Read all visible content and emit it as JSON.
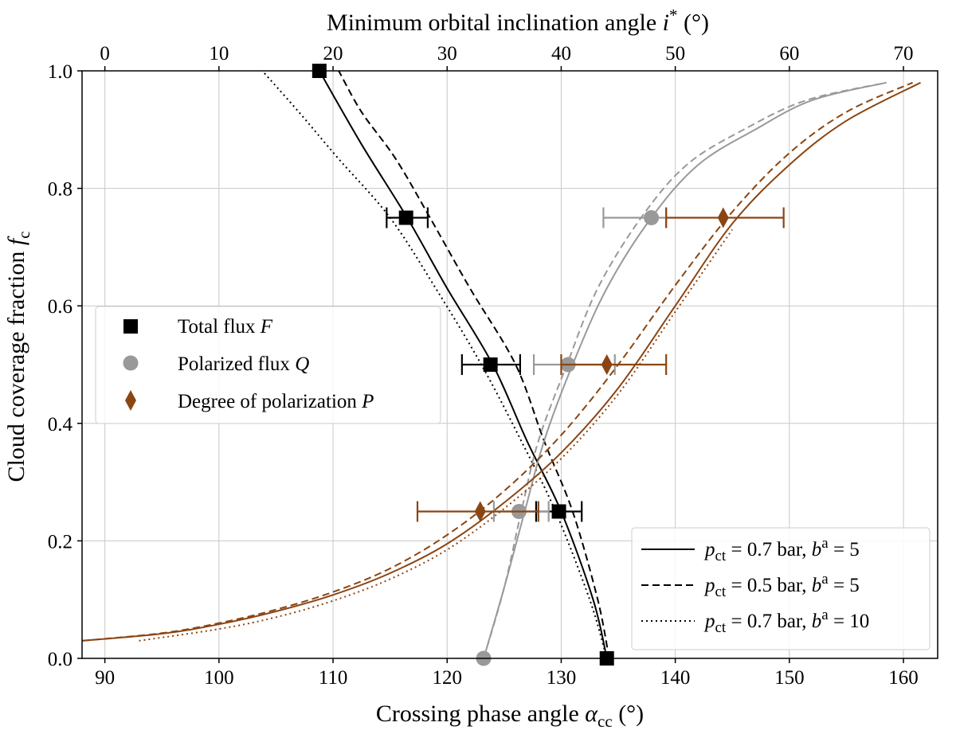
{
  "chart_data": {
    "type": "line",
    "xlabel": "Crossing phase angle",
    "xlabel_symbol": "α",
    "xlabel_sub": "cc",
    "xlabel_unit": "(°)",
    "ylabel": "Cloud coverage fraction",
    "ylabel_symbol": "f",
    "ylabel_sub": "c",
    "top_xlabel": "Minimum orbital inclination angle",
    "top_xlabel_symbol": "i",
    "top_xlabel_sup": "*",
    "top_xlabel_unit": "(°)",
    "xlim": [
      88,
      163
    ],
    "ylim": [
      0.0,
      1.0
    ],
    "x_ticks": [
      90,
      100,
      110,
      120,
      130,
      140,
      150,
      160
    ],
    "y_ticks": [
      0.0,
      0.2,
      0.4,
      0.6,
      0.8,
      1.0
    ],
    "y_tick_labels": [
      "0.0",
      "0.2",
      "0.4",
      "0.6",
      "0.8",
      "1.0"
    ],
    "top_ticks": [
      0,
      10,
      20,
      30,
      40,
      50,
      60,
      70
    ],
    "grid": true,
    "colors": {
      "F": "#000000",
      "Q": "#999999",
      "P": "#8b4513"
    },
    "marker_legend": {
      "position": "center-left",
      "entries": [
        {
          "key": "F",
          "marker": "square",
          "label": "Total flux",
          "symbol": "F"
        },
        {
          "key": "Q",
          "marker": "circle",
          "label": "Polarized flux",
          "symbol": "Q"
        },
        {
          "key": "P",
          "marker": "diamond",
          "label": "Degree of polarization",
          "symbol": "P"
        }
      ]
    },
    "line_legend": {
      "position": "lower-right",
      "entries": [
        {
          "style": "solid",
          "p": "p",
          "p_sub": "ct",
          "p_value": " = 0.7 bar, ",
          "b": "b",
          "b_sup": "a",
          "b_value": " = 5"
        },
        {
          "style": "dashed",
          "p": "p",
          "p_sub": "ct",
          "p_value": " = 0.5 bar, ",
          "b": "b",
          "b_sup": "a",
          "b_value": " = 5"
        },
        {
          "style": "dotted",
          "p": "p",
          "p_sub": "ct",
          "p_value": " = 0.7 bar, ",
          "b": "b",
          "b_sup": "a",
          "b_value": " = 10"
        }
      ]
    },
    "series": [
      {
        "name": "F p_ct=0.7 b=5",
        "color_key": "F",
        "style": "solid",
        "x": [
          134.0,
          132.8,
          130.0,
          127.0,
          124.0,
          120.0,
          116.5,
          112.5,
          108.8
        ],
        "y": [
          0.0,
          0.1,
          0.25,
          0.37,
          0.5,
          0.63,
          0.75,
          0.875,
          1.0
        ]
      },
      {
        "name": "F p_ct=0.5 b=5",
        "color_key": "F",
        "style": "dashed",
        "x": [
          134.2,
          133.2,
          131.0,
          128.5,
          126.0,
          122.0,
          118.5,
          115.5,
          112.5,
          110.5
        ],
        "y": [
          0.0,
          0.1,
          0.25,
          0.37,
          0.5,
          0.63,
          0.75,
          0.85,
          0.93,
          1.0
        ]
      },
      {
        "name": "F p_ct=0.7 b=10",
        "color_key": "F",
        "style": "dotted",
        "x": [
          134.0,
          132.5,
          129.5,
          126.5,
          123.0,
          119.0,
          115.0,
          110.5,
          107.0,
          103.8
        ],
        "y": [
          0.0,
          0.1,
          0.25,
          0.37,
          0.5,
          0.63,
          0.75,
          0.85,
          0.93,
          1.0
        ]
      },
      {
        "name": "Q p_ct=0.7 b=5",
        "color_key": "Q",
        "style": "solid",
        "x": [
          123.2,
          125.0,
          126.8,
          128.5,
          131.0,
          134.0,
          137.9,
          142.0,
          147.0,
          152.0,
          158.5
        ],
        "y": [
          0.0,
          0.12,
          0.25,
          0.37,
          0.5,
          0.63,
          0.75,
          0.84,
          0.9,
          0.95,
          0.98
        ]
      },
      {
        "name": "Q p_ct=0.5 b=5",
        "color_key": "Q",
        "style": "dashed",
        "x": [
          123.2,
          125.0,
          126.5,
          128.0,
          130.5,
          133.2,
          137.0,
          141.0,
          146.0,
          151.5,
          158.5
        ],
        "y": [
          0.0,
          0.12,
          0.25,
          0.37,
          0.5,
          0.63,
          0.75,
          0.84,
          0.9,
          0.95,
          0.98
        ]
      },
      {
        "name": "P p_ct=0.7 b=5",
        "color_key": "P",
        "style": "solid",
        "x": [
          88,
          95,
          100,
          105,
          110,
          115,
          120,
          125,
          130,
          135,
          140,
          145,
          150,
          155,
          161.5
        ],
        "y": [
          0.03,
          0.042,
          0.058,
          0.08,
          0.108,
          0.145,
          0.195,
          0.265,
          0.35,
          0.46,
          0.6,
          0.74,
          0.84,
          0.915,
          0.98
        ]
      },
      {
        "name": "P p_ct=0.5 b=5",
        "color_key": "P",
        "style": "dashed",
        "x": [
          88,
          95,
          100,
          105,
          110,
          115,
          120,
          125,
          130,
          135,
          140,
          145,
          150,
          155,
          160.8
        ],
        "y": [
          0.03,
          0.043,
          0.06,
          0.083,
          0.113,
          0.153,
          0.21,
          0.285,
          0.38,
          0.5,
          0.635,
          0.76,
          0.86,
          0.93,
          0.98
        ]
      },
      {
        "name": "P p_ct=0.7 b=10",
        "color_key": "P",
        "style": "dotted",
        "x": [
          93,
          100,
          105,
          110,
          115,
          120,
          125,
          130,
          135,
          140,
          145
        ],
        "y": [
          0.03,
          0.05,
          0.07,
          0.098,
          0.135,
          0.185,
          0.255,
          0.34,
          0.45,
          0.59,
          0.73
        ]
      }
    ],
    "points": [
      {
        "key": "F",
        "marker": "square",
        "x": 108.8,
        "y": 1.0,
        "xerr": null
      },
      {
        "key": "F",
        "marker": "square",
        "x": 116.4,
        "y": 0.75,
        "xerr": [
          114.7,
          118.3
        ]
      },
      {
        "key": "F",
        "marker": "square",
        "x": 123.8,
        "y": 0.5,
        "xerr": [
          121.3,
          126.4
        ]
      },
      {
        "key": "F",
        "marker": "square",
        "x": 129.8,
        "y": 0.25,
        "xerr": [
          127.8,
          131.8
        ]
      },
      {
        "key": "F",
        "marker": "square",
        "x": 134.0,
        "y": 0.0,
        "xerr": null
      },
      {
        "key": "Q",
        "marker": "circle",
        "x": 137.9,
        "y": 0.75,
        "xerr": [
          133.7,
          139.2
        ]
      },
      {
        "key": "Q",
        "marker": "circle",
        "x": 130.6,
        "y": 0.5,
        "xerr": [
          127.6,
          134.7
        ]
      },
      {
        "key": "Q",
        "marker": "circle",
        "x": 126.3,
        "y": 0.25,
        "xerr": [
          124.1,
          128.9
        ]
      },
      {
        "key": "Q",
        "marker": "circle",
        "x": 123.2,
        "y": 0.0,
        "xerr": null
      },
      {
        "key": "P",
        "marker": "diamond",
        "x": 144.2,
        "y": 0.75,
        "xerr": [
          139.2,
          149.5
        ]
      },
      {
        "key": "P",
        "marker": "diamond",
        "x": 134.0,
        "y": 0.5,
        "xerr": [
          130.0,
          139.2
        ]
      },
      {
        "key": "P",
        "marker": "diamond",
        "x": 122.9,
        "y": 0.25,
        "xerr": [
          117.4,
          128.0
        ]
      }
    ]
  }
}
